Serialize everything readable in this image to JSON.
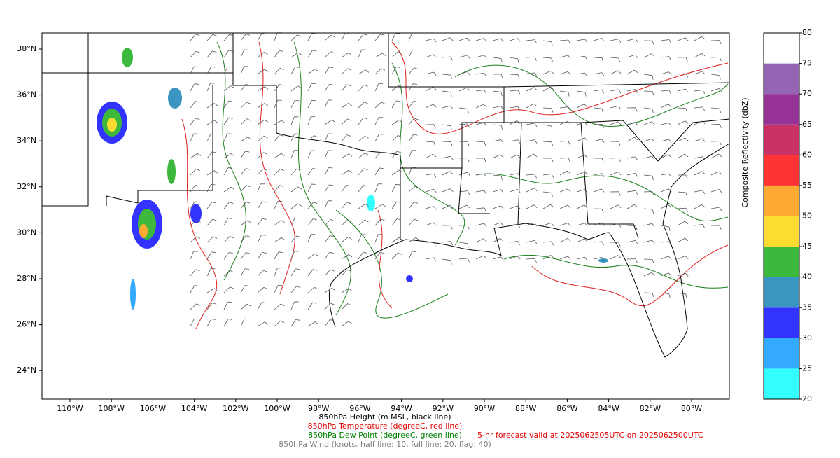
{
  "map": {
    "lon_ticks": [
      "110°W",
      "108°W",
      "106°W",
      "104°W",
      "102°W",
      "100°W",
      "98°W",
      "96°W",
      "94°W",
      "92°W",
      "90°W",
      "88°W",
      "86°W",
      "84°W",
      "82°W",
      "80°W"
    ],
    "lat_ticks": [
      "38°N",
      "36°N",
      "34°N",
      "32°N",
      "30°N",
      "28°N",
      "26°N",
      "24°N"
    ],
    "colorbar": {
      "label": "Composite Reflectivity (dbZ)",
      "levels": [
        20,
        25,
        30,
        35,
        40,
        45,
        50,
        55,
        60,
        65,
        70,
        75,
        80
      ],
      "colors": [
        "#33ffff",
        "#33aaff",
        "#3333ff",
        "#3a96c0",
        "#3cb93c",
        "#fddc32",
        "#fdaa32",
        "#ff3333",
        "#c83264",
        "#963296",
        "#9664b4",
        "#ffffff"
      ]
    },
    "captions": {
      "height": "850hPa Height (m MSL, black line)",
      "temperature": "850hPa Temperature (degreeC, red line)",
      "dew_point": "850hPa Dew Point (degreeC, green line)",
      "wind": "850hPa Wind (knots, half line: 10, full line: 20, flag: 40)",
      "forecast": "5-hr forecast valid at 2025062505UTC on 2025062500UTC"
    }
  }
}
